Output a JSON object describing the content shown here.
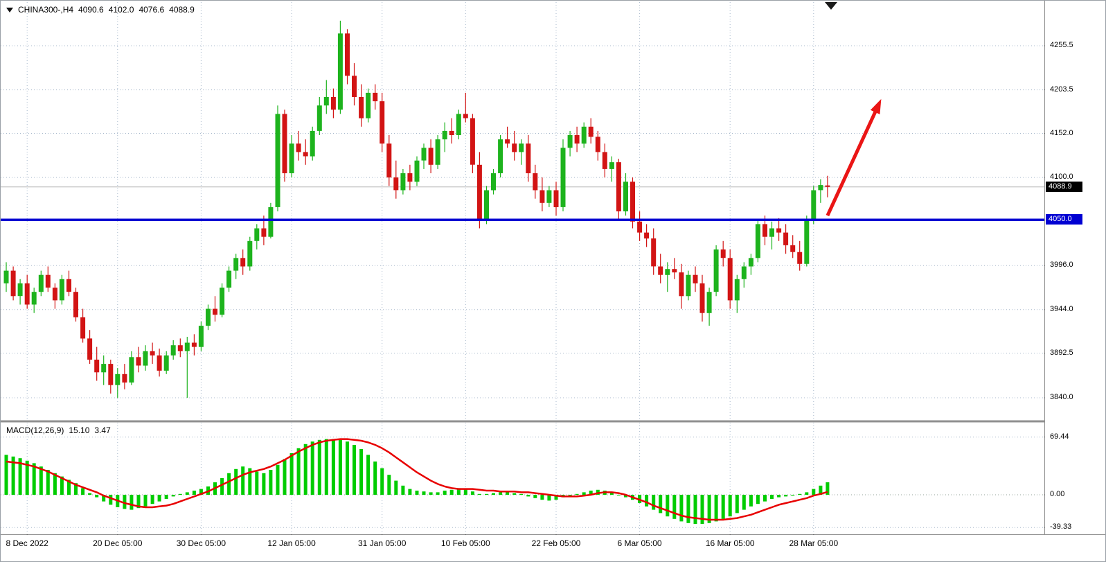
{
  "header": {
    "symbol": "CHINA300-,H4",
    "open": "4090.6",
    "high": "4102.0",
    "low": "4076.6",
    "close": "4088.9"
  },
  "indicator": {
    "label": "MACD(12,26,9)",
    "value": "15.10",
    "signal_value": "3.47",
    "axis_labels": [
      {
        "value": 69.44,
        "text": "69.44"
      },
      {
        "value": 0,
        "text": "0.00"
      },
      {
        "value": -39.33,
        "text": "-39.33"
      }
    ]
  },
  "price_axis": {
    "current_price_badge": {
      "text": "4088.9",
      "bg": "#000000",
      "fg": "#ffffff",
      "price": 4088.9
    },
    "hline_badge": {
      "text": "4050.0",
      "bg": "#0000d2",
      "fg": "#ffffff",
      "price": 4050.0
    }
  },
  "colors": {
    "candle_up": "#1db31d",
    "candle_down": "#d21414",
    "macd_histogram": "#00cc00",
    "macd_signal": "#e80000",
    "hline": "#0000d2",
    "arrow": "#ea1515",
    "current_price_line": "#b3b3b3"
  },
  "chart_data": {
    "type": "candlestick",
    "symbol": "CHINA300-",
    "timeframe": "H4",
    "title": "CHINA300-,H4 4090.6 4102.0 4076.6 4088.9",
    "last_ohlc": {
      "open": 4090.6,
      "high": 4102.0,
      "low": 4076.6,
      "close": 4088.9
    },
    "price_gridlines": [
      4255.5,
      4203.5,
      4152.0,
      4100.0,
      3996.0,
      3944.0,
      3892.5,
      3840.0
    ],
    "visible_price_range": [
      3818,
      4308
    ],
    "time_ticks": {
      "indices": [
        3,
        16,
        28,
        41,
        54,
        66,
        79,
        91,
        104,
        116
      ],
      "labels": [
        "8 Dec 2022",
        "20 Dec 05:00",
        "30 Dec 05:00",
        "12 Jan 05:00",
        "31 Jan 05:00",
        "10 Feb 05:00",
        "22 Feb 05:00",
        "6 Mar 05:00",
        "16 Mar 05:00",
        "28 Mar 05:00"
      ]
    },
    "overlays": {
      "horizontal_line_price": 4050.0,
      "trend_arrow": {
        "from_index": 118,
        "from_price": 4055,
        "to_index": 125,
        "to_price": 4180
      }
    },
    "candles_ohlc": [
      [
        3975,
        4000,
        3965,
        3990
      ],
      [
        3990,
        3995,
        3955,
        3960
      ],
      [
        3960,
        3980,
        3950,
        3975
      ],
      [
        3975,
        3985,
        3945,
        3950
      ],
      [
        3950,
        3970,
        3940,
        3965
      ],
      [
        3965,
        3990,
        3960,
        3985
      ],
      [
        3985,
        3995,
        3965,
        3970
      ],
      [
        3970,
        3975,
        3945,
        3955
      ],
      [
        3955,
        3985,
        3950,
        3980
      ],
      [
        3980,
        3990,
        3960,
        3965
      ],
      [
        3965,
        3970,
        3930,
        3935
      ],
      [
        3935,
        3945,
        3905,
        3910
      ],
      [
        3910,
        3920,
        3880,
        3885
      ],
      [
        3885,
        3900,
        3860,
        3870
      ],
      [
        3870,
        3890,
        3855,
        3880
      ],
      [
        3880,
        3885,
        3845,
        3855
      ],
      [
        3855,
        3875,
        3840,
        3868
      ],
      [
        3868,
        3880,
        3850,
        3858
      ],
      [
        3858,
        3895,
        3855,
        3888
      ],
      [
        3888,
        3900,
        3870,
        3878
      ],
      [
        3878,
        3902,
        3872,
        3895
      ],
      [
        3895,
        3905,
        3880,
        3890
      ],
      [
        3890,
        3898,
        3865,
        3872
      ],
      [
        3872,
        3895,
        3868,
        3890
      ],
      [
        3890,
        3908,
        3885,
        3902
      ],
      [
        3902,
        3910,
        3888,
        3895
      ],
      [
        3895,
        3912,
        3840,
        3905
      ],
      [
        3905,
        3915,
        3890,
        3900
      ],
      [
        3900,
        3930,
        3895,
        3925
      ],
      [
        3925,
        3950,
        3920,
        3945
      ],
      [
        3945,
        3960,
        3930,
        3938
      ],
      [
        3938,
        3975,
        3935,
        3970
      ],
      [
        3970,
        3995,
        3965,
        3990
      ],
      [
        3990,
        4010,
        3980,
        4005
      ],
      [
        4005,
        4015,
        3985,
        3995
      ],
      [
        3995,
        4030,
        3990,
        4025
      ],
      [
        4025,
        4045,
        4015,
        4040
      ],
      [
        4040,
        4055,
        4020,
        4030
      ],
      [
        4030,
        4070,
        4028,
        4065
      ],
      [
        4065,
        4185,
        4060,
        4175
      ],
      [
        4175,
        4180,
        4095,
        4105
      ],
      [
        4105,
        4150,
        4100,
        4140
      ],
      [
        4140,
        4155,
        4120,
        4130
      ],
      [
        4130,
        4145,
        4115,
        4125
      ],
      [
        4125,
        4160,
        4120,
        4155
      ],
      [
        4155,
        4195,
        4150,
        4185
      ],
      [
        4185,
        4215,
        4175,
        4195
      ],
      [
        4195,
        4205,
        4170,
        4180
      ],
      [
        4180,
        4285,
        4175,
        4270
      ],
      [
        4270,
        4275,
        4210,
        4220
      ],
      [
        4220,
        4235,
        4185,
        4195
      ],
      [
        4195,
        4210,
        4160,
        4170
      ],
      [
        4170,
        4205,
        4165,
        4200
      ],
      [
        4200,
        4210,
        4180,
        4190
      ],
      [
        4190,
        4200,
        4130,
        4140
      ],
      [
        4140,
        4150,
        4090,
        4100
      ],
      [
        4100,
        4120,
        4075,
        4085
      ],
      [
        4085,
        4110,
        4080,
        4105
      ],
      [
        4105,
        4115,
        4085,
        4095
      ],
      [
        4095,
        4125,
        4090,
        4120
      ],
      [
        4120,
        4140,
        4110,
        4135
      ],
      [
        4135,
        4145,
        4105,
        4115
      ],
      [
        4115,
        4150,
        4110,
        4145
      ],
      [
        4145,
        4165,
        4130,
        4155
      ],
      [
        4155,
        4170,
        4140,
        4150
      ],
      [
        4150,
        4180,
        4145,
        4175
      ],
      [
        4175,
        4200,
        4165,
        4170
      ],
      [
        4170,
        4175,
        4105,
        4115
      ],
      [
        4115,
        4130,
        4040,
        4050
      ],
      [
        4050,
        4090,
        4045,
        4085
      ],
      [
        4085,
        4110,
        4080,
        4105
      ],
      [
        4105,
        4150,
        4100,
        4145
      ],
      [
        4145,
        4160,
        4135,
        4140
      ],
      [
        4140,
        4155,
        4120,
        4130
      ],
      [
        4130,
        4145,
        4115,
        4140
      ],
      [
        4140,
        4150,
        4095,
        4105
      ],
      [
        4105,
        4115,
        4075,
        4085
      ],
      [
        4085,
        4100,
        4060,
        4070
      ],
      [
        4070,
        4090,
        4065,
        4085
      ],
      [
        4085,
        4095,
        4055,
        4065
      ],
      [
        4065,
        4145,
        4060,
        4135
      ],
      [
        4135,
        4155,
        4125,
        4150
      ],
      [
        4150,
        4160,
        4130,
        4140
      ],
      [
        4140,
        4165,
        4135,
        4160
      ],
      [
        4160,
        4170,
        4140,
        4148
      ],
      [
        4148,
        4155,
        4120,
        4130
      ],
      [
        4130,
        4140,
        4100,
        4110
      ],
      [
        4110,
        4125,
        4095,
        4118
      ],
      [
        4118,
        4122,
        4050,
        4060
      ],
      [
        4060,
        4105,
        4055,
        4095
      ],
      [
        4095,
        4100,
        4040,
        4048
      ],
      [
        4048,
        4060,
        4025,
        4035
      ],
      [
        4035,
        4045,
        4018,
        4028
      ],
      [
        4028,
        4040,
        3985,
        3995
      ],
      [
        3995,
        4010,
        3975,
        3985
      ],
      [
        3985,
        4000,
        3965,
        3992
      ],
      [
        3992,
        4005,
        3980,
        3988
      ],
      [
        3988,
        3998,
        3945,
        3960
      ],
      [
        3960,
        3990,
        3955,
        3985
      ],
      [
        3985,
        3995,
        3965,
        3975
      ],
      [
        3975,
        3985,
        3930,
        3940
      ],
      [
        3940,
        3970,
        3925,
        3965
      ],
      [
        3965,
        4020,
        3960,
        4015
      ],
      [
        4015,
        4025,
        3995,
        4005
      ],
      [
        4005,
        4015,
        3945,
        3955
      ],
      [
        3955,
        3985,
        3940,
        3980
      ],
      [
        3980,
        4000,
        3970,
        3995
      ],
      [
        3995,
        4010,
        3985,
        4005
      ],
      [
        4005,
        4050,
        4000,
        4045
      ],
      [
        4045,
        4055,
        4020,
        4030
      ],
      [
        4030,
        4048,
        4015,
        4040
      ],
      [
        4040,
        4052,
        4025,
        4035
      ],
      [
        4035,
        4045,
        4010,
        4020
      ],
      [
        4020,
        4032,
        4005,
        4012
      ],
      [
        4012,
        4025,
        3990,
        3998
      ],
      [
        3998,
        4055,
        3995,
        4050
      ],
      [
        4050,
        4090,
        4045,
        4085
      ],
      [
        4085,
        4098,
        4070,
        4091
      ],
      [
        4090.6,
        4102.0,
        4076.6,
        4088.9
      ]
    ],
    "macd": {
      "params": "12,26,9",
      "current_value": 15.1,
      "current_signal": 3.47,
      "axis_ticks": [
        69.44,
        0.0,
        -39.33
      ],
      "histogram": [
        48,
        46,
        44,
        41,
        38,
        34,
        30,
        26,
        22,
        18,
        14,
        8,
        2,
        -3,
        -8,
        -12,
        -15,
        -17,
        -18,
        -16,
        -14,
        -11,
        -8,
        -5,
        -2,
        1,
        3,
        5,
        7,
        10,
        15,
        20,
        26,
        31,
        34,
        32,
        28,
        26,
        30,
        36,
        43,
        50,
        56,
        61,
        64,
        66,
        67,
        67,
        66,
        64,
        60,
        55,
        48,
        40,
        32,
        24,
        17,
        11,
        7,
        5,
        4,
        3,
        3,
        5,
        6,
        8,
        7,
        4,
        1,
        1,
        2,
        3,
        3,
        2,
        1,
        -2,
        -4,
        -6,
        -7,
        -6,
        -3,
        -1,
        1,
        3,
        5,
        6,
        5,
        3,
        0,
        -3,
        -6,
        -10,
        -14,
        -18,
        -22,
        -26,
        -29,
        -32,
        -34,
        -35,
        -35,
        -34,
        -32,
        -29,
        -26,
        -22,
        -18,
        -14,
        -11,
        -8,
        -5,
        -3,
        -2,
        -1,
        1,
        3,
        7,
        11,
        15.1
      ],
      "signal": [
        40,
        39,
        38,
        36,
        34,
        31,
        28,
        24,
        20,
        16,
        12,
        9,
        6,
        3,
        -1,
        -4,
        -7,
        -10,
        -12,
        -14,
        -15,
        -15,
        -14,
        -13,
        -11,
        -8,
        -5,
        -2,
        1,
        4,
        8,
        12,
        16,
        20,
        24,
        27,
        29,
        31,
        34,
        38,
        42,
        47,
        52,
        56,
        60,
        63,
        65,
        66,
        67,
        67,
        66,
        65,
        63,
        60,
        56,
        51,
        45,
        39,
        33,
        27,
        22,
        17,
        13,
        10,
        8,
        7,
        7,
        7,
        6,
        5,
        5,
        4,
        4,
        4,
        3,
        3,
        2,
        1,
        0,
        -1,
        -2,
        -2,
        -2,
        -1,
        0,
        2,
        3,
        3,
        2,
        0,
        -3,
        -6,
        -9,
        -13,
        -16,
        -19,
        -22,
        -25,
        -27,
        -28,
        -29,
        -30,
        -30,
        -30,
        -29,
        -28,
        -26,
        -24,
        -21,
        -18,
        -15,
        -12,
        -10,
        -8,
        -6,
        -4,
        -1,
        1,
        3.47
      ]
    }
  }
}
